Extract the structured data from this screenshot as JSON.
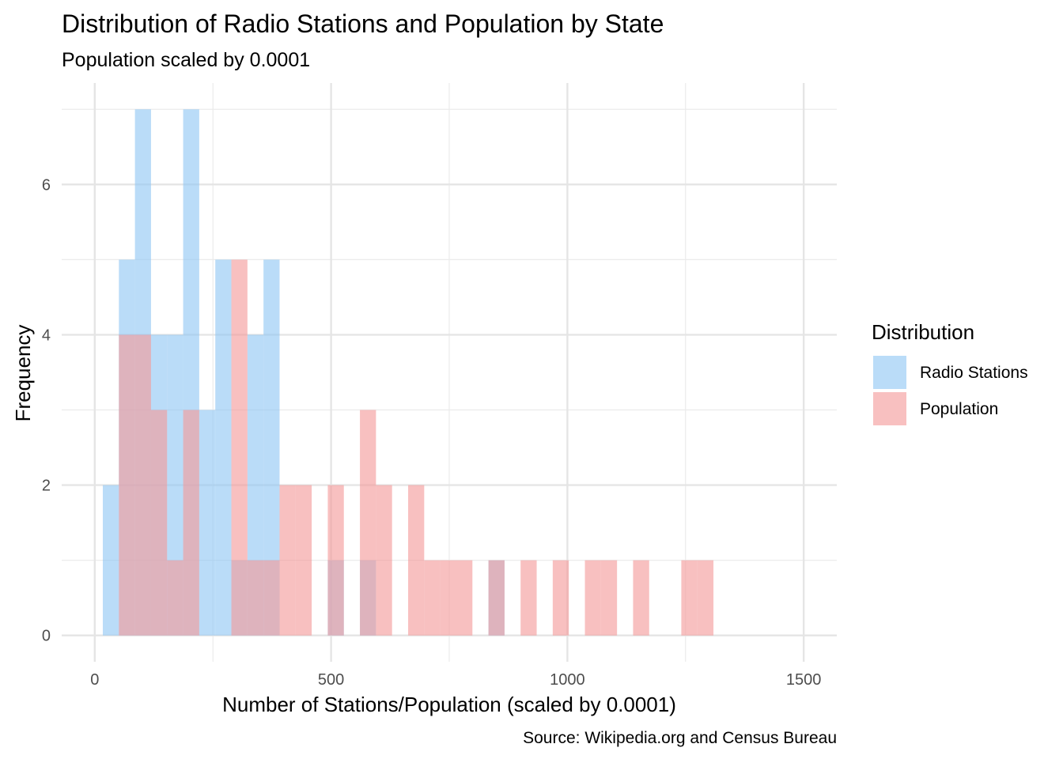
{
  "chart_data": {
    "type": "bar",
    "title": "Distribution of Radio Stations and Population by State",
    "subtitle": "Population scaled by 0.0001",
    "xlabel": "Number of Stations/Population (scaled by 0.0001)",
    "ylabel": "Frequency",
    "caption": "Source: Wikipedia.org and Census Bureau",
    "xlim": [
      -70,
      1570
    ],
    "ylim": [
      -0.35,
      7.35
    ],
    "x_ticks": [
      0,
      500,
      1000,
      1500
    ],
    "x_tick_labels": [
      "0",
      "500",
      "1000",
      "1500"
    ],
    "y_ticks": [
      0,
      2,
      4,
      6
    ],
    "y_tick_labels": [
      "0",
      "2",
      "4",
      "6"
    ],
    "grid": true,
    "legend": {
      "title": "Distribution",
      "placement": "right"
    },
    "bin_width": 34,
    "series": [
      {
        "name": "Radio Stations",
        "color": "#90C6F4",
        "bins": [
          {
            "x0": 17,
            "x1": 51,
            "count": 2
          },
          {
            "x0": 51,
            "x1": 85,
            "count": 5
          },
          {
            "x0": 85,
            "x1": 119,
            "count": 7
          },
          {
            "x0": 119,
            "x1": 153,
            "count": 4
          },
          {
            "x0": 153,
            "x1": 187,
            "count": 4
          },
          {
            "x0": 187,
            "x1": 221,
            "count": 7
          },
          {
            "x0": 221,
            "x1": 255,
            "count": 3
          },
          {
            "x0": 255,
            "x1": 289,
            "count": 5
          },
          {
            "x0": 289,
            "x1": 323,
            "count": 1
          },
          {
            "x0": 323,
            "x1": 357,
            "count": 4
          },
          {
            "x0": 357,
            "x1": 391,
            "count": 5
          },
          {
            "x0": 493,
            "x1": 527,
            "count": 1
          },
          {
            "x0": 561,
            "x1": 595,
            "count": 1
          },
          {
            "x0": 833,
            "x1": 867,
            "count": 1
          }
        ]
      },
      {
        "name": "Population",
        "color": "#F49A9A",
        "bins": [
          {
            "x0": 51,
            "x1": 85,
            "count": 4
          },
          {
            "x0": 85,
            "x1": 119,
            "count": 4
          },
          {
            "x0": 119,
            "x1": 153,
            "count": 3
          },
          {
            "x0": 153,
            "x1": 187,
            "count": 1
          },
          {
            "x0": 187,
            "x1": 221,
            "count": 3
          },
          {
            "x0": 289,
            "x1": 323,
            "count": 5
          },
          {
            "x0": 323,
            "x1": 357,
            "count": 1
          },
          {
            "x0": 357,
            "x1": 391,
            "count": 1
          },
          {
            "x0": 391,
            "x1": 425,
            "count": 2
          },
          {
            "x0": 425,
            "x1": 459,
            "count": 2
          },
          {
            "x0": 493,
            "x1": 527,
            "count": 2
          },
          {
            "x0": 561,
            "x1": 595,
            "count": 3
          },
          {
            "x0": 595,
            "x1": 629,
            "count": 2
          },
          {
            "x0": 663,
            "x1": 697,
            "count": 2
          },
          {
            "x0": 697,
            "x1": 731,
            "count": 1
          },
          {
            "x0": 731,
            "x1": 765,
            "count": 1
          },
          {
            "x0": 765,
            "x1": 799,
            "count": 1
          },
          {
            "x0": 833,
            "x1": 867,
            "count": 1
          },
          {
            "x0": 901,
            "x1": 935,
            "count": 1
          },
          {
            "x0": 969,
            "x1": 1003,
            "count": 1
          },
          {
            "x0": 1037,
            "x1": 1071,
            "count": 1
          },
          {
            "x0": 1071,
            "x1": 1105,
            "count": 1
          },
          {
            "x0": 1139,
            "x1": 1173,
            "count": 1
          },
          {
            "x0": 1241,
            "x1": 1275,
            "count": 1
          },
          {
            "x0": 1275,
            "x1": 1309,
            "count": 1
          }
        ]
      }
    ]
  }
}
